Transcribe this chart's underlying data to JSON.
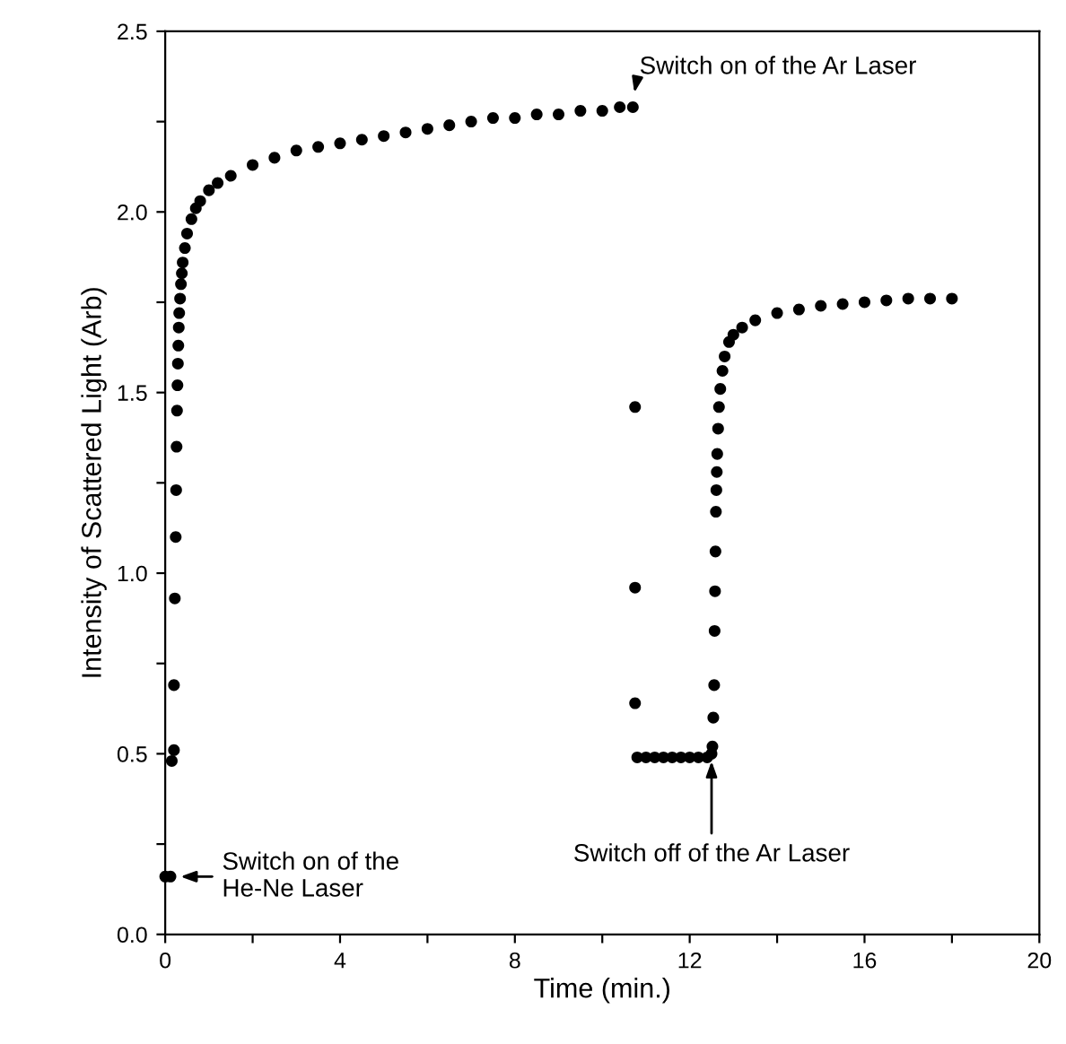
{
  "chart_data": {
    "type": "scatter",
    "xlabel": "Time (min.)",
    "ylabel": "Intensity of Scattered Light (Arb)",
    "marker": "circle",
    "grid": false,
    "xlim": [
      0,
      20
    ],
    "ylim": [
      0,
      2.5
    ],
    "xticks": [
      0,
      {
        "value": 2,
        "label": null
      },
      4,
      {
        "value": 6,
        "label": null
      },
      8,
      {
        "value": 10,
        "label": null
      },
      12,
      {
        "value": 14,
        "label": null
      },
      16,
      {
        "value": 18,
        "label": null
      },
      20
    ],
    "yticks": [
      {
        "value": 0,
        "label": "0.0"
      },
      {
        "value": 0.25,
        "label": null
      },
      {
        "value": 0.5,
        "label": "0.5"
      },
      {
        "value": 0.75,
        "label": null
      },
      {
        "value": 1,
        "label": "1.0"
      },
      {
        "value": 1.25,
        "label": null
      },
      {
        "value": 1.5,
        "label": "1.5"
      },
      {
        "value": 1.75,
        "label": null
      },
      {
        "value": 2,
        "label": "2.0"
      },
      {
        "value": 2.25,
        "label": null
      },
      {
        "value": 2.5,
        "label": "2.5"
      }
    ],
    "series": [
      {
        "color": "#000000",
        "x": [
          0.0,
          0.12,
          0.15,
          0.2,
          0.2,
          0.22,
          0.24,
          0.25,
          0.26,
          0.27,
          0.28,
          0.29,
          0.3,
          0.31,
          0.32,
          0.34,
          0.36,
          0.38,
          0.4,
          0.45,
          0.5,
          0.6,
          0.7,
          0.8,
          1.0,
          1.2,
          1.5,
          2.0,
          2.5,
          3.0,
          3.5,
          4.0,
          4.5,
          5.0,
          5.5,
          6.0,
          6.5,
          7.0,
          7.5,
          8.0,
          8.5,
          9.0,
          9.5,
          10.0,
          10.4,
          10.7,
          10.75,
          10.75,
          10.75,
          10.8,
          11.0,
          11.2,
          11.4,
          11.6,
          11.8,
          12.0,
          12.2,
          12.4,
          12.5,
          12.52,
          12.54,
          12.56,
          12.57,
          12.58,
          12.59,
          12.6,
          12.61,
          12.62,
          12.63,
          12.65,
          12.67,
          12.7,
          12.75,
          12.8,
          12.9,
          13.0,
          13.2,
          13.5,
          14.0,
          14.5,
          15.0,
          15.5,
          16.0,
          16.5,
          17.0,
          17.5,
          18.0
        ],
        "values": [
          0.16,
          0.16,
          0.48,
          0.51,
          0.69,
          0.93,
          1.1,
          1.23,
          1.35,
          1.45,
          1.52,
          1.58,
          1.63,
          1.68,
          1.72,
          1.76,
          1.8,
          1.83,
          1.86,
          1.9,
          1.94,
          1.98,
          2.01,
          2.03,
          2.06,
          2.08,
          2.1,
          2.13,
          2.15,
          2.17,
          2.18,
          2.19,
          2.2,
          2.21,
          2.22,
          2.23,
          2.24,
          2.25,
          2.26,
          2.26,
          2.27,
          2.27,
          2.28,
          2.28,
          2.29,
          2.29,
          1.46,
          0.96,
          0.64,
          0.49,
          0.49,
          0.49,
          0.49,
          0.49,
          0.49,
          0.49,
          0.49,
          0.49,
          0.5,
          0.52,
          0.6,
          0.69,
          0.84,
          0.95,
          1.06,
          1.17,
          1.23,
          1.28,
          1.33,
          1.4,
          1.46,
          1.51,
          1.56,
          1.6,
          1.64,
          1.66,
          1.68,
          1.7,
          1.72,
          1.73,
          1.74,
          1.745,
          1.75,
          1.755,
          1.76,
          1.76,
          1.76
        ]
      }
    ],
    "annotations": [
      {
        "text": "Switch on of the\nHe-Ne Laser",
        "x": 0.12,
        "y": 0.16
      },
      {
        "text": "Switch on of the Ar Laser",
        "x": 10.7,
        "y": 2.31
      },
      {
        "text": "Switch off of the Ar Laser",
        "x": 12.5,
        "y": 0.5
      }
    ]
  }
}
